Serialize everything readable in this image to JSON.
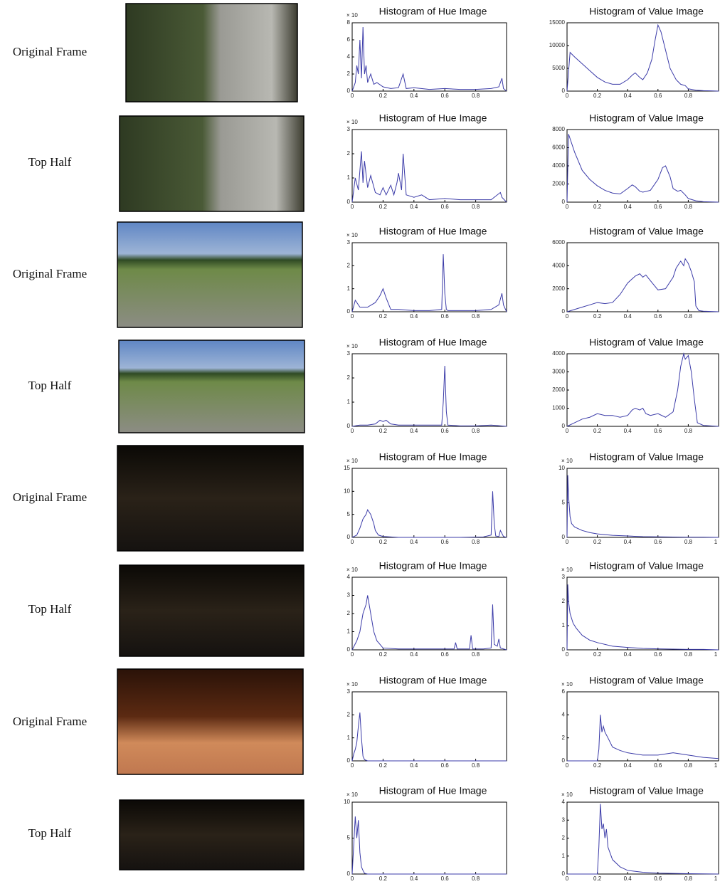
{
  "rows": [
    {
      "label": "Original Frame"
    },
    {
      "label": "Top Half"
    },
    {
      "label": "Original Frame"
    },
    {
      "label": "Top Half"
    },
    {
      "label": "Original Frame"
    },
    {
      "label": "Top Half"
    },
    {
      "label": "Original Frame"
    },
    {
      "label": "Top Half"
    }
  ],
  "chart_data": [
    {
      "type": "line",
      "title": "Histogram of Hue Image",
      "y_multiplier": "× 10",
      "color": "#3b3ba8",
      "xlim": [
        0,
        1
      ],
      "ylim": [
        0,
        8
      ],
      "xticks": [
        0,
        0.2,
        0.4,
        0.6,
        0.8
      ],
      "yticks": [
        0,
        2,
        4,
        6,
        8
      ],
      "x": [
        0,
        0.02,
        0.03,
        0.04,
        0.05,
        0.06,
        0.07,
        0.08,
        0.09,
        0.1,
        0.12,
        0.14,
        0.16,
        0.2,
        0.25,
        0.3,
        0.33,
        0.35,
        0.4,
        0.5,
        0.6,
        0.7,
        0.8,
        0.9,
        0.95,
        0.97,
        0.98,
        1
      ],
      "values": [
        0,
        1,
        3,
        2,
        6,
        1.5,
        7.5,
        2,
        3,
        1,
        2,
        0.8,
        1,
        0.5,
        0.3,
        0.4,
        2,
        0.3,
        0.4,
        0.2,
        0.3,
        0.2,
        0.2,
        0.3,
        0.5,
        1.5,
        0.3,
        0
      ]
    },
    {
      "type": "line",
      "title": "Histogram of Value Image",
      "color": "#3b3ba8",
      "xlim": [
        0,
        1
      ],
      "ylim": [
        0,
        15000
      ],
      "xticks": [
        0,
        0.2,
        0.4,
        0.6,
        0.8
      ],
      "yticks": [
        0,
        5000,
        10000,
        15000
      ],
      "x": [
        0,
        0.02,
        0.05,
        0.1,
        0.15,
        0.2,
        0.25,
        0.3,
        0.35,
        0.4,
        0.43,
        0.45,
        0.48,
        0.5,
        0.53,
        0.56,
        0.58,
        0.6,
        0.62,
        0.65,
        0.68,
        0.72,
        0.75,
        0.78,
        0.8,
        0.85,
        0.9,
        0.95,
        1
      ],
      "values": [
        0,
        8500,
        7500,
        6000,
        4500,
        3000,
        2000,
        1500,
        1500,
        2500,
        3500,
        4000,
        3000,
        2500,
        4000,
        7000,
        11000,
        14500,
        13000,
        9000,
        5000,
        2500,
        1500,
        1200,
        500,
        200,
        100,
        50,
        0
      ]
    },
    {
      "type": "line",
      "title": "Histogram of Hue Image",
      "y_multiplier": "× 10",
      "color": "#3b3ba8",
      "xlim": [
        0,
        1
      ],
      "ylim": [
        0,
        3
      ],
      "xticks": [
        0,
        0.2,
        0.4,
        0.6,
        0.8
      ],
      "yticks": [
        0,
        1,
        2,
        3
      ],
      "x": [
        0,
        0.02,
        0.04,
        0.06,
        0.07,
        0.08,
        0.1,
        0.12,
        0.15,
        0.18,
        0.2,
        0.22,
        0.25,
        0.27,
        0.29,
        0.3,
        0.32,
        0.33,
        0.35,
        0.4,
        0.45,
        0.5,
        0.6,
        0.7,
        0.8,
        0.9,
        0.96,
        0.97,
        1
      ],
      "values": [
        0,
        1,
        0.5,
        2.1,
        0.8,
        1.7,
        0.6,
        1.1,
        0.4,
        0.3,
        0.6,
        0.3,
        0.7,
        0.3,
        0.8,
        1.2,
        0.5,
        2,
        0.3,
        0.2,
        0.3,
        0.1,
        0.15,
        0.1,
        0.1,
        0.1,
        0.4,
        0.2,
        0
      ]
    },
    {
      "type": "line",
      "title": "Histogram of Value Image",
      "color": "#3b3ba8",
      "xlim": [
        0,
        1
      ],
      "ylim": [
        0,
        8000
      ],
      "xticks": [
        0,
        0.2,
        0.4,
        0.6,
        0.8
      ],
      "yticks": [
        0,
        2000,
        4000,
        6000,
        8000
      ],
      "x": [
        0,
        0.01,
        0.02,
        0.05,
        0.1,
        0.15,
        0.2,
        0.25,
        0.3,
        0.35,
        0.4,
        0.43,
        0.45,
        0.48,
        0.5,
        0.55,
        0.6,
        0.63,
        0.65,
        0.68,
        0.7,
        0.73,
        0.75,
        0.78,
        0.8,
        0.85,
        0.9,
        1
      ],
      "values": [
        0,
        7500,
        7000,
        5500,
        3500,
        2500,
        1800,
        1300,
        1000,
        900,
        1500,
        1900,
        1700,
        1200,
        1100,
        1300,
        2500,
        3800,
        4000,
        2800,
        1500,
        1200,
        1300,
        800,
        400,
        150,
        50,
        0
      ]
    },
    {
      "type": "line",
      "title": "Histogram of Hue Image",
      "y_multiplier": "× 10",
      "color": "#3b3ba8",
      "xlim": [
        0,
        1
      ],
      "ylim": [
        0,
        3
      ],
      "xticks": [
        0,
        0.2,
        0.4,
        0.6,
        0.8
      ],
      "yticks": [
        0,
        1,
        2,
        3
      ],
      "x": [
        0,
        0.02,
        0.05,
        0.1,
        0.15,
        0.18,
        0.2,
        0.22,
        0.25,
        0.3,
        0.4,
        0.5,
        0.58,
        0.59,
        0.6,
        0.61,
        0.62,
        0.7,
        0.8,
        0.9,
        0.95,
        0.97,
        0.98,
        1
      ],
      "values": [
        0,
        0.5,
        0.2,
        0.2,
        0.4,
        0.7,
        1,
        0.6,
        0.1,
        0.1,
        0.05,
        0.05,
        0.1,
        2.5,
        0.8,
        0.1,
        0.05,
        0.05,
        0.05,
        0.1,
        0.3,
        0.8,
        0.3,
        0
      ]
    },
    {
      "type": "line",
      "title": "Histogram of Value Image",
      "color": "#3b3ba8",
      "xlim": [
        0,
        1
      ],
      "ylim": [
        0,
        6000
      ],
      "xticks": [
        0,
        0.2,
        0.4,
        0.6,
        0.8
      ],
      "yticks": [
        0,
        2000,
        4000,
        6000
      ],
      "x": [
        0,
        0.05,
        0.1,
        0.15,
        0.2,
        0.25,
        0.3,
        0.35,
        0.4,
        0.45,
        0.48,
        0.5,
        0.52,
        0.55,
        0.6,
        0.65,
        0.7,
        0.72,
        0.75,
        0.77,
        0.78,
        0.8,
        0.82,
        0.84,
        0.85,
        0.87,
        0.9,
        1
      ],
      "values": [
        0,
        200,
        400,
        600,
        800,
        700,
        800,
        1500,
        2500,
        3100,
        3300,
        3000,
        3200,
        2700,
        1900,
        2000,
        3000,
        3800,
        4400,
        4000,
        4600,
        4200,
        3500,
        2600,
        500,
        100,
        50,
        0
      ]
    },
    {
      "type": "line",
      "title": "Histogram of Hue Image",
      "y_multiplier": "× 10",
      "color": "#3b3ba8",
      "xlim": [
        0,
        1
      ],
      "ylim": [
        0,
        3
      ],
      "xticks": [
        0,
        0.2,
        0.4,
        0.6,
        0.8
      ],
      "yticks": [
        0,
        1,
        2,
        3
      ],
      "x": [
        0,
        0.05,
        0.1,
        0.15,
        0.18,
        0.2,
        0.22,
        0.25,
        0.3,
        0.4,
        0.5,
        0.58,
        0.59,
        0.6,
        0.61,
        0.62,
        0.7,
        0.8,
        0.9,
        1
      ],
      "values": [
        0,
        0.05,
        0.05,
        0.1,
        0.25,
        0.2,
        0.25,
        0.1,
        0.05,
        0.05,
        0.05,
        0.05,
        1,
        2.5,
        0.6,
        0.05,
        0.02,
        0.02,
        0.05,
        0
      ]
    },
    {
      "type": "line",
      "title": "Histogram of Value Image",
      "color": "#3b3ba8",
      "xlim": [
        0,
        1
      ],
      "ylim": [
        0,
        4000
      ],
      "xticks": [
        0,
        0.2,
        0.4,
        0.6,
        0.8
      ],
      "yticks": [
        0,
        1000,
        2000,
        3000,
        4000
      ],
      "x": [
        0,
        0.05,
        0.1,
        0.15,
        0.2,
        0.25,
        0.3,
        0.35,
        0.4,
        0.43,
        0.45,
        0.48,
        0.5,
        0.52,
        0.55,
        0.6,
        0.65,
        0.7,
        0.73,
        0.75,
        0.77,
        0.78,
        0.8,
        0.82,
        0.84,
        0.86,
        0.9,
        1
      ],
      "values": [
        0,
        200,
        400,
        500,
        700,
        600,
        600,
        500,
        600,
        900,
        1000,
        900,
        1000,
        700,
        600,
        700,
        500,
        800,
        2000,
        3300,
        4000,
        3700,
        3900,
        3000,
        1500,
        200,
        50,
        0
      ]
    },
    {
      "type": "line",
      "title": "Histogram of Hue Image",
      "y_multiplier": "× 10",
      "color": "#3b3ba8",
      "xlim": [
        0,
        1
      ],
      "ylim": [
        0,
        15
      ],
      "xticks": [
        0,
        0.2,
        0.4,
        0.6,
        0.8
      ],
      "yticks": [
        0,
        5,
        10,
        15
      ],
      "x": [
        0,
        0.03,
        0.05,
        0.07,
        0.09,
        0.1,
        0.12,
        0.14,
        0.15,
        0.17,
        0.2,
        0.3,
        0.5,
        0.7,
        0.85,
        0.9,
        0.91,
        0.92,
        0.93,
        0.95,
        0.96,
        0.98,
        1
      ],
      "values": [
        0,
        0.5,
        2,
        4,
        5,
        6,
        5,
        3,
        1.5,
        0.5,
        0.2,
        0,
        0,
        0,
        0.1,
        0.5,
        10,
        3,
        0.3,
        0.2,
        1.5,
        0.2,
        0
      ]
    },
    {
      "type": "line",
      "title": "Histogram of Value Image",
      "y_multiplier": "× 10",
      "color": "#3b3ba8",
      "xlim": [
        0,
        1
      ],
      "ylim": [
        0,
        10
      ],
      "xticks": [
        0,
        0.2,
        0.4,
        0.6,
        0.8,
        1
      ],
      "yticks": [
        0,
        5,
        10
      ],
      "x": [
        0,
        0.005,
        0.01,
        0.02,
        0.03,
        0.05,
        0.1,
        0.15,
        0.2,
        0.3,
        0.4,
        0.5,
        0.6,
        0.7,
        0.8,
        0.9,
        1
      ],
      "values": [
        0,
        9,
        6,
        3,
        2,
        1.5,
        1,
        0.7,
        0.5,
        0.3,
        0.2,
        0.1,
        0.08,
        0.05,
        0.03,
        0.02,
        0
      ]
    },
    {
      "type": "line",
      "title": "Histogram of Hue Image",
      "y_multiplier": "× 10",
      "color": "#3b3ba8",
      "xlim": [
        0,
        1
      ],
      "ylim": [
        0,
        4
      ],
      "xticks": [
        0,
        0.2,
        0.4,
        0.6,
        0.8
      ],
      "yticks": [
        0,
        1,
        2,
        3,
        4
      ],
      "x": [
        0,
        0.03,
        0.05,
        0.07,
        0.09,
        0.1,
        0.12,
        0.14,
        0.16,
        0.18,
        0.2,
        0.3,
        0.4,
        0.5,
        0.6,
        0.66,
        0.67,
        0.68,
        0.76,
        0.77,
        0.78,
        0.85,
        0.9,
        0.91,
        0.92,
        0.94,
        0.95,
        0.96,
        1
      ],
      "values": [
        0,
        0.5,
        1,
        2,
        2.5,
        3,
        2,
        1,
        0.5,
        0.3,
        0.1,
        0.05,
        0.05,
        0.05,
        0.05,
        0.05,
        0.4,
        0.05,
        0.05,
        0.8,
        0.05,
        0.05,
        0.1,
        2.5,
        0.3,
        0.2,
        0.6,
        0.1,
        0
      ]
    },
    {
      "type": "line",
      "title": "Histogram of Value Image",
      "y_multiplier": "× 10",
      "color": "#3b3ba8",
      "xlim": [
        0,
        1
      ],
      "ylim": [
        0,
        3
      ],
      "xticks": [
        0,
        0.2,
        0.4,
        0.6,
        0.8,
        1
      ],
      "yticks": [
        0,
        1,
        2,
        3
      ],
      "x": [
        0,
        0.005,
        0.01,
        0.02,
        0.04,
        0.06,
        0.1,
        0.15,
        0.2,
        0.3,
        0.4,
        0.5,
        0.6,
        0.7,
        0.8,
        0.9,
        1
      ],
      "values": [
        0,
        2.7,
        2,
        1.5,
        1.1,
        0.9,
        0.6,
        0.4,
        0.3,
        0.15,
        0.1,
        0.06,
        0.04,
        0.03,
        0.02,
        0.02,
        0
      ]
    },
    {
      "type": "line",
      "title": "Histogram of Hue Image",
      "y_multiplier": "× 10",
      "color": "#3b3ba8",
      "xlim": [
        0,
        1
      ],
      "ylim": [
        0,
        3
      ],
      "xticks": [
        0,
        0.2,
        0.4,
        0.6,
        0.8
      ],
      "yticks": [
        0,
        1,
        2,
        3
      ],
      "x": [
        0,
        0.01,
        0.02,
        0.03,
        0.04,
        0.05,
        0.06,
        0.07,
        0.08,
        0.1,
        0.2,
        0.4,
        0.6,
        0.8,
        1
      ],
      "values": [
        0,
        0.3,
        0.5,
        0.8,
        1.5,
        2.1,
        1,
        0.2,
        0.05,
        0,
        0,
        0,
        0,
        0,
        0
      ]
    },
    {
      "type": "line",
      "title": "Histogram of Value Image",
      "y_multiplier": "× 10",
      "color": "#3b3ba8",
      "xlim": [
        0,
        1
      ],
      "ylim": [
        0,
        6
      ],
      "xticks": [
        0,
        0.2,
        0.4,
        0.6,
        0.8,
        1
      ],
      "yticks": [
        0,
        2,
        4,
        6
      ],
      "x": [
        0,
        0.1,
        0.2,
        0.21,
        0.22,
        0.23,
        0.24,
        0.25,
        0.27,
        0.3,
        0.35,
        0.4,
        0.5,
        0.6,
        0.7,
        0.75,
        0.8,
        0.9,
        1
      ],
      "values": [
        0,
        0,
        0,
        1,
        4,
        2.5,
        3,
        2.5,
        2,
        1.2,
        0.9,
        0.7,
        0.5,
        0.5,
        0.7,
        0.6,
        0.5,
        0.3,
        0.2
      ]
    },
    {
      "type": "line",
      "title": "Histogram of Hue Image",
      "y_multiplier": "× 10",
      "color": "#3b3ba8",
      "xlim": [
        0,
        1
      ],
      "ylim": [
        0,
        10
      ],
      "xticks": [
        0,
        0.2,
        0.4,
        0.6,
        0.8
      ],
      "yticks": [
        0,
        5,
        10
      ],
      "x": [
        0,
        0.01,
        0.02,
        0.03,
        0.04,
        0.05,
        0.06,
        0.07,
        0.08,
        0.1,
        0.2,
        0.4,
        0.6,
        0.8,
        1
      ],
      "values": [
        0,
        4,
        8,
        5,
        7.5,
        3,
        1,
        0.5,
        0.1,
        0,
        0,
        0,
        0,
        0,
        0
      ]
    },
    {
      "type": "line",
      "title": "Histogram of Value Image",
      "y_multiplier": "× 10",
      "color": "#3b3ba8",
      "xlim": [
        0,
        1
      ],
      "ylim": [
        0,
        4
      ],
      "xticks": [
        0,
        0.2,
        0.4,
        0.6,
        0.8,
        1
      ],
      "yticks": [
        0,
        1,
        2,
        3,
        4
      ],
      "x": [
        0,
        0.1,
        0.2,
        0.21,
        0.22,
        0.23,
        0.24,
        0.25,
        0.26,
        0.27,
        0.3,
        0.35,
        0.4,
        0.5,
        0.6,
        0.8,
        1
      ],
      "values": [
        0,
        0,
        0,
        1.5,
        3.9,
        2.5,
        2.8,
        2,
        2.5,
        1.5,
        0.8,
        0.4,
        0.2,
        0.1,
        0.05,
        0.02,
        0
      ]
    }
  ]
}
